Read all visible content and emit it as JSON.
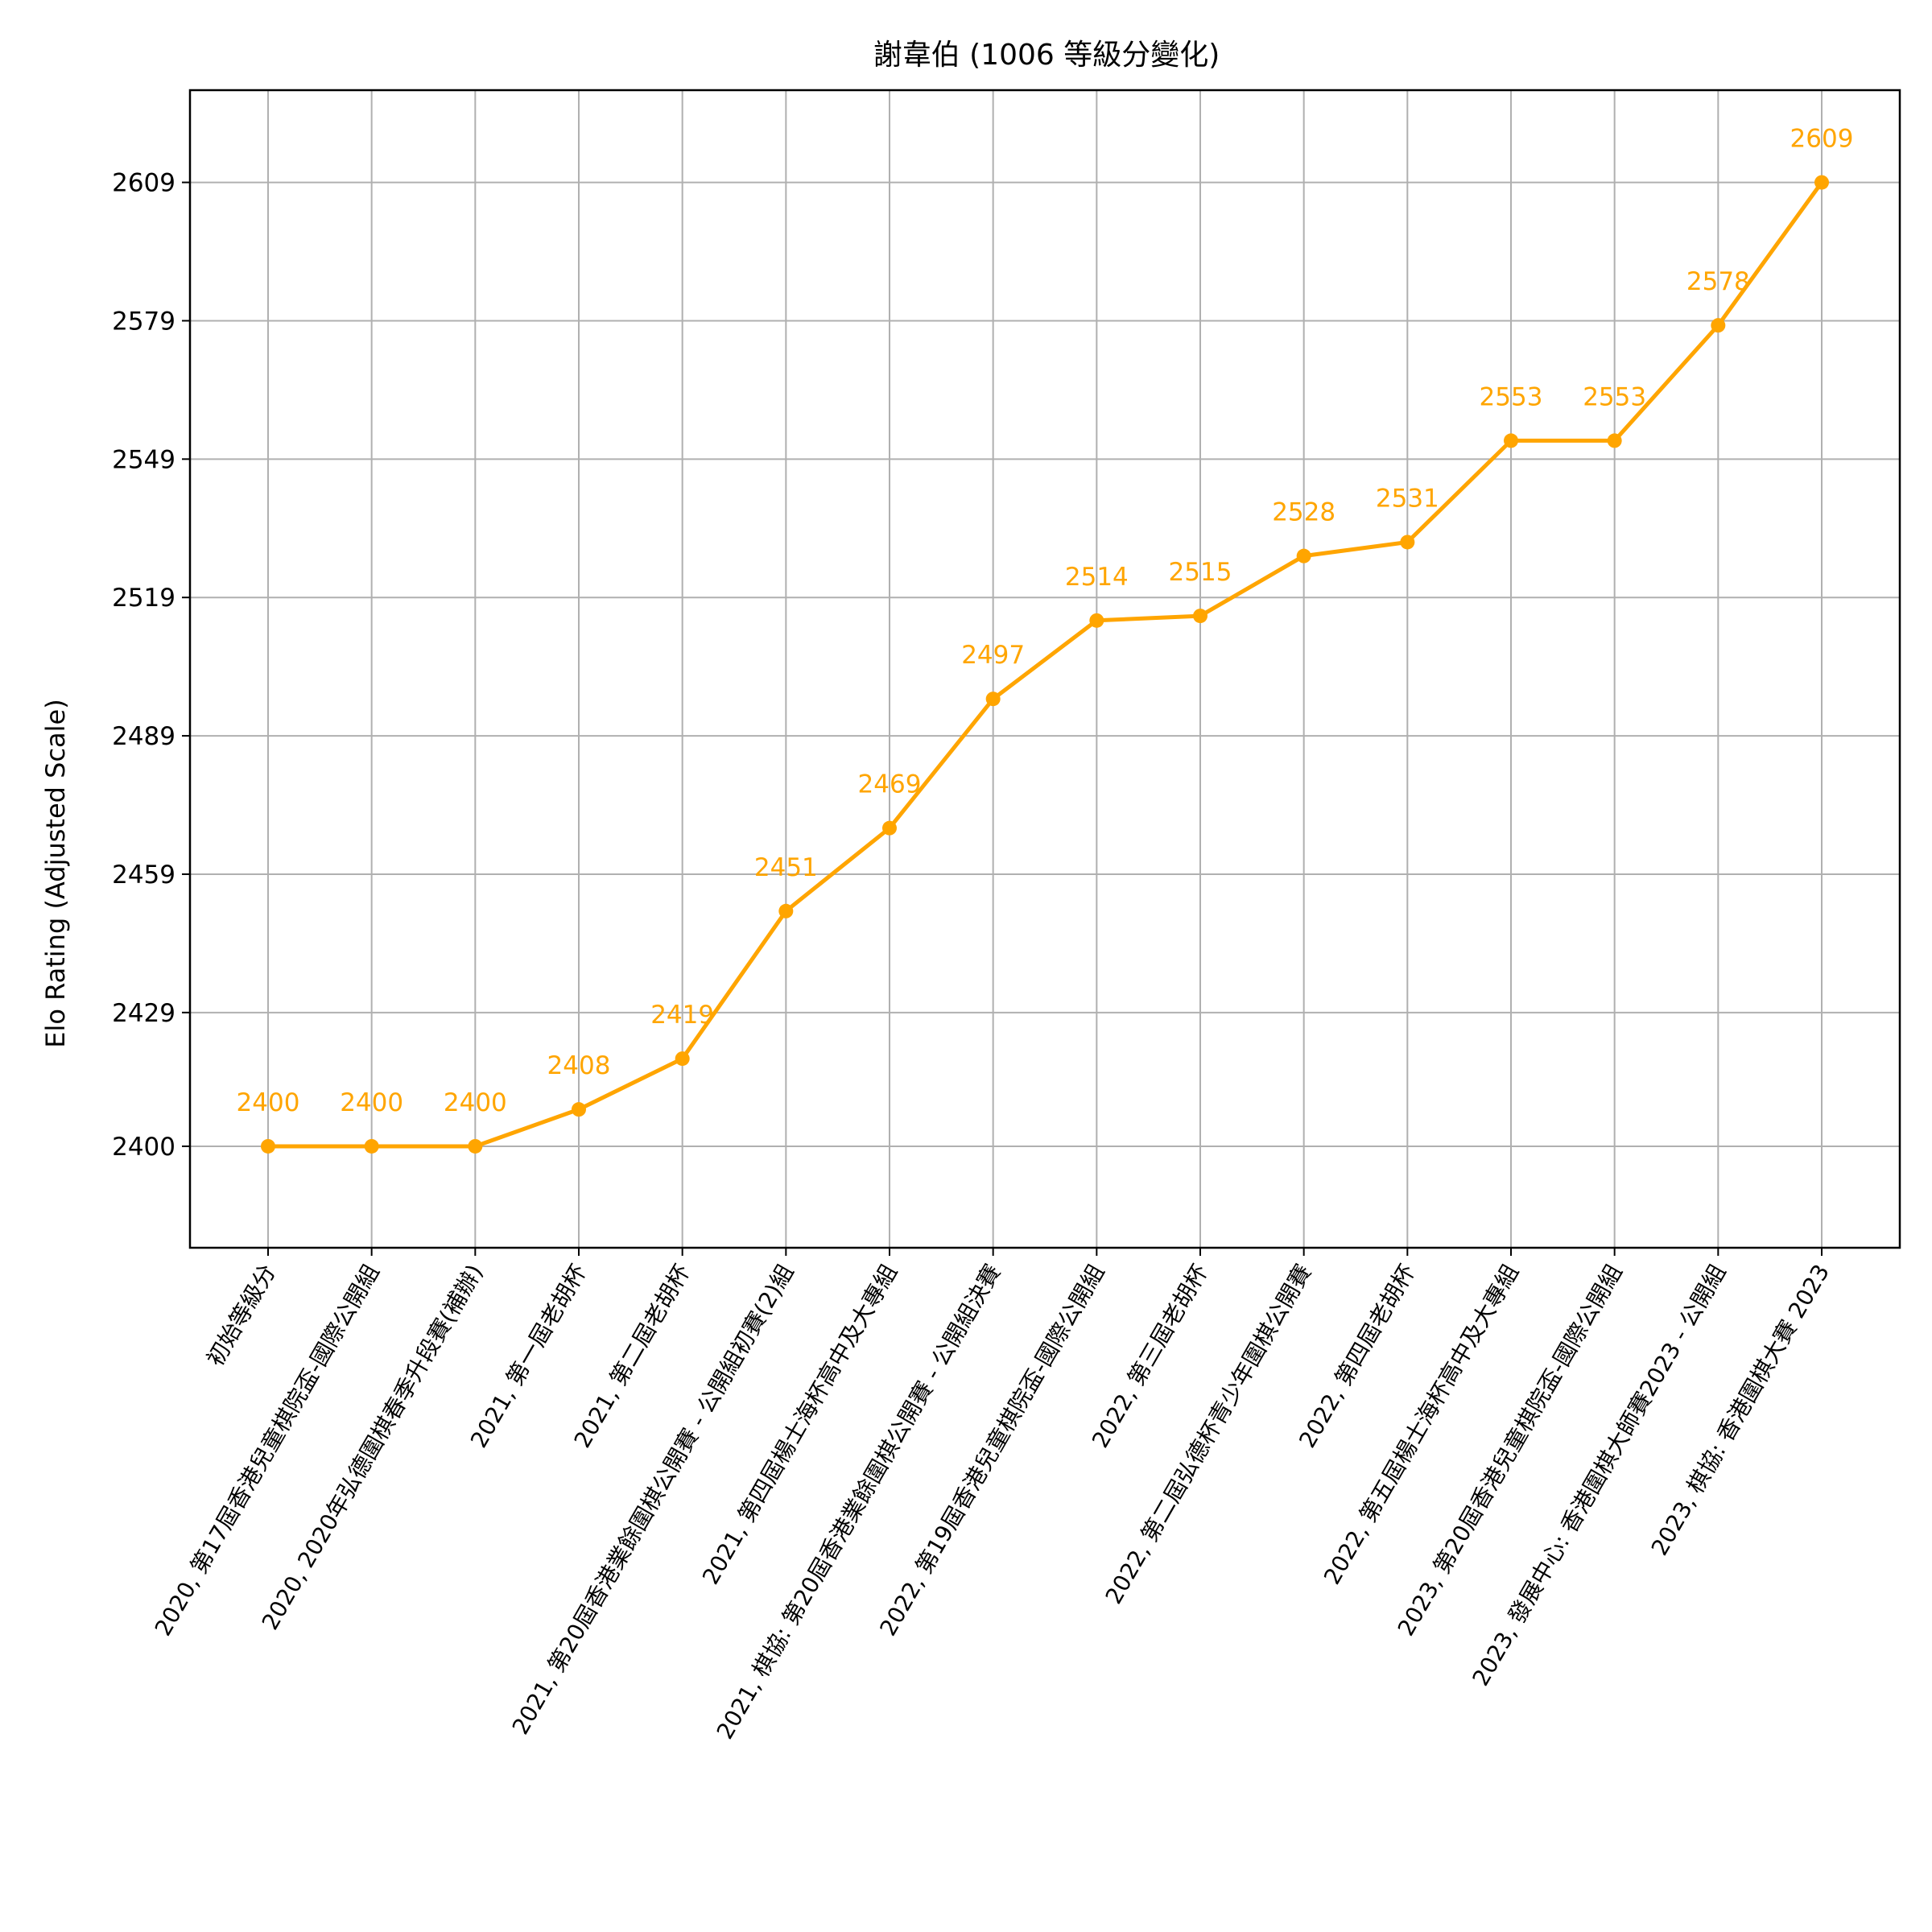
{
  "chart_data": {
    "type": "line",
    "title": "謝韋伯 (1006 等級分變化)",
    "xlabel": "",
    "ylabel": "Elo Rating (Adjusted Scale)",
    "categories": [
      "初始等級分",
      "2020, 第17屆香港兒童棋院盃-國際公開組",
      "2020, 2020年弘德圍棋春季升段賽(補辦)",
      "2021, 第一屆老胡杯",
      "2021, 第二屆老胡杯",
      "2021, 第20屆香港業餘圍棋公開賽 - 公開組初賽(2)組",
      "2021, 第四屆楊士海杯高中及大專組",
      "2021, 棋協: 第20屆香港業餘圍棋公開賽 - 公開組決賽",
      "2022, 第19屆香港兒童棋院盃-國際公開組",
      "2022, 第三屆老胡杯",
      "2022, 第二屆弘德杯青少年圍棋公開賽",
      "2022, 第四屆老胡杯",
      "2022, 第五屆楊士海杯高中及大專組",
      "2023, 第20屆香港兒童棋院盃-國際公開組",
      "2023, 發展中心: 香港圍棋大師賽2023 - 公開組",
      "2023, 棋協: 香港圍棋大賽 2023"
    ],
    "values": [
      2400,
      2400,
      2400,
      2408,
      2419,
      2451,
      2469,
      2497,
      2514,
      2515,
      2528,
      2531,
      2553,
      2553,
      2578,
      2609
    ],
    "data_labels": [
      "2400",
      "2400",
      "2400",
      "2408",
      "2419",
      "2451",
      "2469",
      "2497",
      "2514",
      "2515",
      "2528",
      "2531",
      "2553",
      "2553",
      "2578",
      "2609"
    ],
    "yticks": [
      2400,
      2429,
      2459,
      2489,
      2519,
      2549,
      2579,
      2609
    ],
    "ytick_labels": [
      "2400",
      "2429",
      "2459",
      "2489",
      "2519",
      "2549",
      "2579",
      "2609"
    ],
    "ylim": [
      2378,
      2629
    ],
    "grid": true,
    "line_color": "#ffa500",
    "label_color": "#ffa500"
  }
}
